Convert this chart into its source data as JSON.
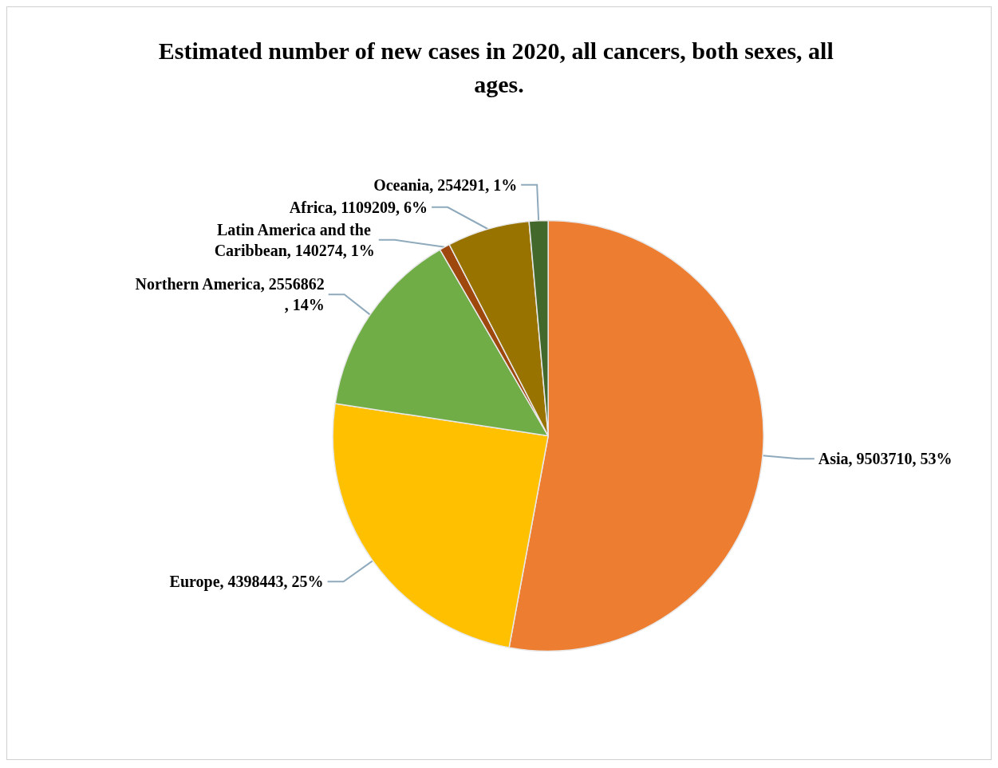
{
  "chart_data": {
    "type": "pie",
    "title": "Estimated number of new cases in 2020, all cancers, both sexes, all ages.",
    "categories": [
      "Asia",
      "Europe",
      "Northern America",
      "Latin America and the Caribbean",
      "Africa",
      "Oceania"
    ],
    "values": [
      9503710,
      4398443,
      2556862,
      140274,
      1109209,
      254291
    ],
    "colors": [
      "#ed7d31",
      "#ffc000",
      "#70ad47",
      "#9e480e",
      "#997300",
      "#43682b"
    ],
    "value_labels": [
      "9503710, 53%",
      "4398443, 25%",
      "2556862, 14%",
      "140274, 1%",
      "1109209, 6%",
      "254291, 1%"
    ],
    "legend": false
  }
}
